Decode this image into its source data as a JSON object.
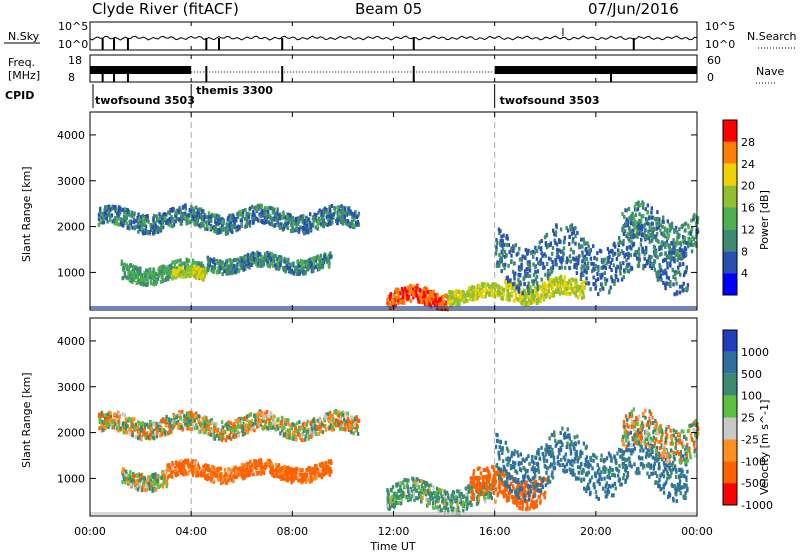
{
  "header": {
    "station": "Clyde River (fitACF)",
    "beam": "Beam 05",
    "date": "07/Jun/2016"
  },
  "noise_panel": {
    "left_label": "N.Sky",
    "right_label": "N.Search",
    "right_ticks": [
      "10^5",
      "10^0"
    ],
    "left_ticks": [
      "10^5",
      "10^0"
    ]
  },
  "freq_panel": {
    "left_label_line1": "Freq.",
    "left_label_line2": "[MHz]",
    "left_ticks": [
      "18",
      "8"
    ],
    "right_label": "Nave",
    "right_ticks": [
      "60",
      "0"
    ]
  },
  "cpid": {
    "label": "CPID",
    "modes": [
      {
        "name": "twofsound 3503",
        "start_hour": 0
      },
      {
        "name": "themis 3300",
        "start_hour": 4
      },
      {
        "name": "twofsound 3503",
        "start_hour": 16
      }
    ]
  },
  "x_axis": {
    "label": "Time UT",
    "ticks": [
      "00:00",
      "04:00",
      "08:00",
      "12:00",
      "16:00",
      "20:00",
      "00:00"
    ],
    "range_hours": [
      0,
      24
    ]
  },
  "power_panel": {
    "ylabel": "Slant Range [km]",
    "yticks": [
      "1000",
      "2000",
      "3000",
      "4000"
    ],
    "colorbar_label": "Power [dB]",
    "colorbar_ticks": [
      "4",
      "8",
      "12",
      "16",
      "20",
      "24",
      "28"
    ]
  },
  "velocity_panel": {
    "ylabel": "Slant Range [km]",
    "yticks": [
      "1000",
      "2000",
      "3000",
      "4000"
    ],
    "colorbar_label": "Velocity [m s^-1]",
    "colorbar_ticks": [
      "1000",
      "500",
      "100",
      "25",
      "-25",
      "-100",
      "-500",
      "-1000"
    ]
  },
  "colors": {
    "power_scale": [
      "#0000ff",
      "#2950b0",
      "#3d8a6e",
      "#4caf50",
      "#90c030",
      "#f0d000",
      "#ff8000",
      "#ff0000"
    ],
    "velocity_scale": [
      "#1f3fbf",
      "#2f6fa0",
      "#3a8a70",
      "#5cbf40",
      "#c8c8c8",
      "#ff9020",
      "#ff6000",
      "#ff0000"
    ]
  },
  "chart_data": [
    {
      "type": "heatmap",
      "title": "Power",
      "xlabel": "Time UT",
      "ylabel": "Slant Range [km]",
      "x_unit": "hours UT",
      "xlim": [
        0,
        24
      ],
      "ylim": [
        180,
        4500
      ],
      "colorbar": {
        "label": "Power [dB]",
        "range": [
          0,
          30
        ]
      },
      "regions": [
        {
          "t0": 0.3,
          "t1": 10.6,
          "r_center": 2150,
          "r_halfwidth": 200,
          "value_db": 9
        },
        {
          "t0": 1.2,
          "t1": 4.5,
          "r_center": 1000,
          "r_halfwidth": 180,
          "value_db": 12
        },
        {
          "t0": 3.2,
          "t1": 4.6,
          "r_center": 950,
          "r_halfwidth": 120,
          "value_db": 20
        },
        {
          "t0": 4.6,
          "t1": 9.5,
          "r_center": 1200,
          "r_halfwidth": 150,
          "value_db": 10
        },
        {
          "t0": 11.7,
          "t1": 14.1,
          "r_center": 430,
          "r_halfwidth": 180,
          "value_db": 28
        },
        {
          "t0": 14.1,
          "t1": 16.3,
          "r_center": 520,
          "r_halfwidth": 150,
          "value_db": 20
        },
        {
          "t0": 16.3,
          "t1": 19.5,
          "r_center": 600,
          "r_halfwidth": 200,
          "value_db": 20
        },
        {
          "t0": 16.0,
          "t1": 23.6,
          "r_center": 1300,
          "r_halfwidth": 500,
          "value_db": 8
        },
        {
          "t0": 21.0,
          "t1": 24.0,
          "r_center": 1900,
          "r_halfwidth": 400,
          "value_db": 10
        }
      ]
    },
    {
      "type": "heatmap",
      "title": "Velocity",
      "xlabel": "Time UT",
      "ylabel": "Slant Range [km]",
      "x_unit": "hours UT",
      "xlim": [
        0,
        24
      ],
      "ylim": [
        180,
        4500
      ],
      "colorbar": {
        "label": "Velocity [m s^-1]",
        "range": [
          -1000,
          1000
        ]
      },
      "regions": [
        {
          "t0": 0.3,
          "t1": 10.6,
          "r_center": 2150,
          "r_halfwidth": 200,
          "value_ms": 0
        },
        {
          "t0": 1.2,
          "t1": 3.0,
          "r_center": 1000,
          "r_halfwidth": 180,
          "value_ms": 50
        },
        {
          "t0": 3.0,
          "t1": 9.5,
          "r_center": 1150,
          "r_halfwidth": 160,
          "value_ms": -200
        },
        {
          "t0": 11.7,
          "t1": 16.0,
          "r_center": 600,
          "r_halfwidth": 250,
          "value_ms": 150
        },
        {
          "t0": 15.0,
          "t1": 18.0,
          "r_center": 800,
          "r_halfwidth": 300,
          "value_ms": -300
        },
        {
          "t0": 16.0,
          "t1": 23.6,
          "r_center": 1300,
          "r_halfwidth": 500,
          "value_ms": 600
        },
        {
          "t0": 21.0,
          "t1": 24.0,
          "r_center": 1900,
          "r_halfwidth": 400,
          "value_ms": 0
        }
      ]
    }
  ]
}
